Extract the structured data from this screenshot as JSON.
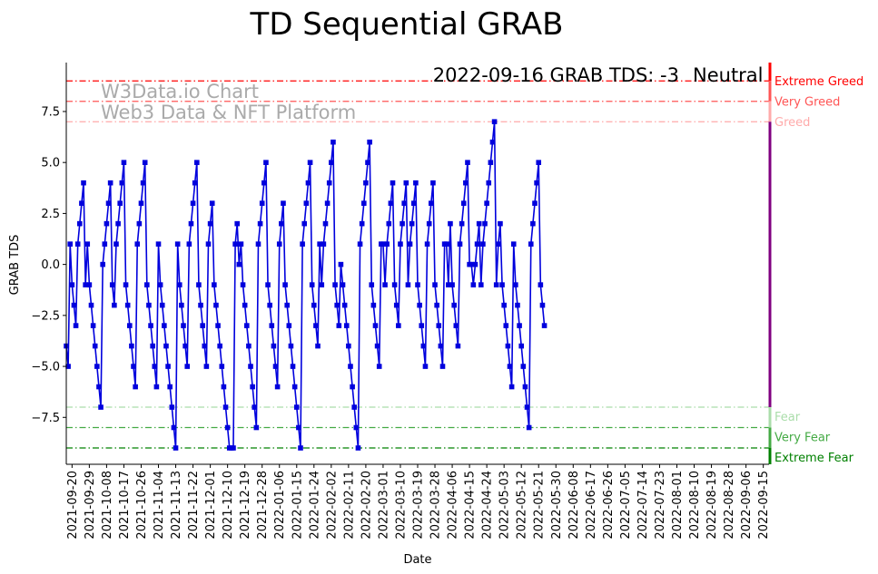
{
  "chart_data": {
    "type": "line",
    "title": "TD Sequential GRAB",
    "xlabel": "Date",
    "ylabel": "GRAB TDS",
    "x_start": "2021-09-17",
    "x_end": "2022-09-18",
    "ylim": [
      -9.8,
      9.9
    ],
    "y_ticks": [
      -7.5,
      -5.0,
      -2.5,
      0.0,
      2.5,
      5.0,
      7.5
    ],
    "y_tick_labels": [
      "−7.5",
      "−5.0",
      "−2.5",
      "0.0",
      "2.5",
      "5.0",
      "7.5"
    ],
    "x_tick_labels": [
      "2021-09-20",
      "2021-09-29",
      "2021-10-08",
      "2021-10-17",
      "2021-10-26",
      "2021-11-04",
      "2021-11-13",
      "2021-11-22",
      "2021-12-01",
      "2021-12-10",
      "2021-12-19",
      "2021-12-28",
      "2022-01-06",
      "2022-01-15",
      "2022-01-24",
      "2022-02-02",
      "2022-02-11",
      "2022-02-20",
      "2022-03-01",
      "2022-03-10",
      "2022-03-19",
      "2022-03-28",
      "2022-04-06",
      "2022-04-15",
      "2022-04-24",
      "2022-05-03",
      "2022-05-12",
      "2022-05-21",
      "2022-05-30",
      "2022-06-08",
      "2022-06-17",
      "2022-06-26",
      "2022-07-05",
      "2022-07-14",
      "2022-07-23",
      "2022-08-01",
      "2022-08-10",
      "2022-08-19",
      "2022-08-28",
      "2022-09-06",
      "2022-09-15"
    ],
    "series": [
      {
        "name": "",
        "color": "#0000dd",
        "x_start": "2021-09-17",
        "values": [
          -4,
          -5,
          1,
          -1,
          -2,
          -3,
          1,
          2,
          3,
          4,
          -1,
          1,
          -1,
          -2,
          -3,
          -4,
          -5,
          -6,
          -7,
          0,
          1,
          2,
          3,
          4,
          -1,
          -2,
          1,
          2,
          3,
          4,
          5,
          -1,
          -2,
          -3,
          -4,
          -5,
          -6,
          1,
          2,
          3,
          4,
          5,
          -1,
          -2,
          -3,
          -4,
          -5,
          -6,
          1,
          -1,
          -2,
          -3,
          -4,
          -5,
          -6,
          -7,
          -8,
          -9,
          1,
          -1,
          -2,
          -3,
          -4,
          -5,
          1,
          2,
          3,
          4,
          5,
          -1,
          -2,
          -3,
          -4,
          -5,
          1,
          2,
          3,
          -1,
          -2,
          -3,
          -4,
          -5,
          -6,
          -7,
          -8,
          -9,
          -9,
          -9,
          1,
          2,
          0,
          1,
          -1,
          -2,
          -3,
          -4,
          -5,
          -6,
          -7,
          -8,
          1,
          2,
          3,
          4,
          5,
          -1,
          -2,
          -3,
          -4,
          -5,
          -6,
          1,
          2,
          3,
          -1,
          -2,
          -3,
          -4,
          -5,
          -6,
          -7,
          -8,
          -9,
          1,
          2,
          3,
          4,
          5,
          -1,
          -2,
          -3,
          -4,
          1,
          -1,
          1,
          2,
          3,
          4,
          5,
          6,
          -1,
          -2,
          -3,
          0,
          -1,
          -2,
          -3,
          -4,
          -5,
          -6,
          -7,
          -8,
          -9,
          1,
          2,
          3,
          4,
          5,
          6,
          -1,
          -2,
          -3,
          -4,
          -5,
          1,
          1,
          -1,
          1,
          2,
          3,
          4,
          -1,
          -2,
          -3,
          1,
          2,
          3,
          4,
          -1,
          1,
          2,
          3,
          4,
          -1,
          -2,
          -3,
          -4,
          -5,
          1,
          2,
          3,
          4,
          -1,
          -2,
          -3,
          -4,
          -5,
          1,
          1,
          -1,
          2,
          -1,
          -2,
          -3,
          -4,
          1,
          2,
          3,
          4,
          5,
          0,
          0,
          -1,
          0,
          1,
          2,
          -1,
          1,
          2,
          3,
          4,
          5,
          6,
          7,
          -1,
          1,
          2,
          -1,
          -2,
          -3,
          -4,
          -5,
          -6,
          1,
          -1,
          -2,
          -3,
          -4,
          -5,
          -6,
          -7,
          -8,
          1,
          2,
          3,
          4,
          5,
          -1,
          -2,
          -3
        ]
      }
    ],
    "zones": [
      {
        "label": "Extreme Greed",
        "value": 9,
        "color": "#ff0000"
      },
      {
        "label": "Very Greed",
        "value": 8,
        "color": "#ff5555"
      },
      {
        "label": "Greed",
        "value": 7,
        "color": "#ffaaaa"
      },
      {
        "label": "Fear",
        "value": -7,
        "color": "#aaddaa"
      },
      {
        "label": "Very Fear",
        "value": -8,
        "color": "#44aa44"
      },
      {
        "label": "Extreme Fear",
        "value": -9,
        "color": "#008000"
      }
    ],
    "annotations": {
      "readout": "2022-09-16 GRAB TDS: -3",
      "sentiment": "Neutral",
      "sentiment_color": "#800080",
      "watermark_line1": "W3Data.io Chart",
      "watermark_line2": "Web3 Data & NFT Platform"
    },
    "grid": false,
    "legend": "none"
  }
}
